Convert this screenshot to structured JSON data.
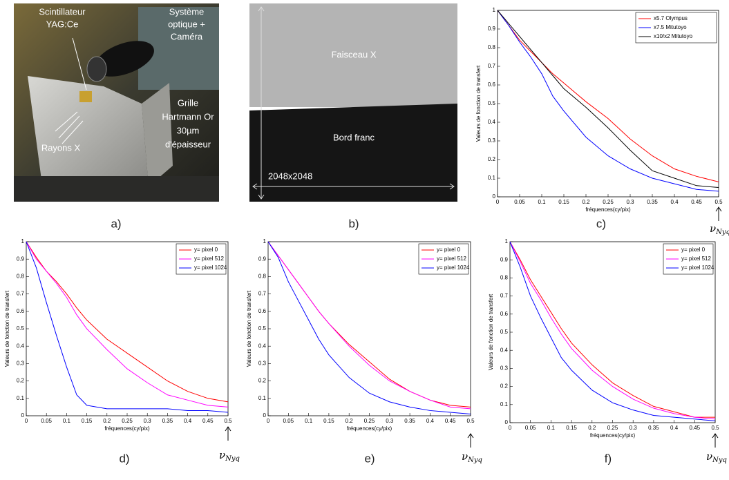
{
  "photos": [
    {
      "panel_label": "a)",
      "labels": [
        "Scintillateur",
        "YAG:Ce",
        "Système",
        "optique +",
        "Caméra",
        "Grille",
        "Hartmann Or",
        "30µm",
        "d'épaisseur",
        "Rayons X"
      ]
    },
    {
      "panel_label": "b)",
      "labels": [
        "Faisceau X",
        "Bord franc",
        "2048x2048"
      ]
    }
  ],
  "chart_data": [
    {
      "type": "line",
      "panel_label": "c)",
      "xlabel": "fréquences(cy/pix)",
      "ylabel": "Valeurs de fonction de transfert",
      "annotation": {
        "symbol": "ν",
        "subscript": "Nyq"
      },
      "x": [
        0,
        0.025,
        0.05,
        0.075,
        0.1,
        0.125,
        0.15,
        0.2,
        0.25,
        0.3,
        0.35,
        0.4,
        0.45,
        0.5
      ],
      "series": [
        {
          "name": "x5.7 Olympus",
          "color": "#ff0000",
          "values": [
            1,
            0.92,
            0.84,
            0.78,
            0.72,
            0.66,
            0.61,
            0.51,
            0.42,
            0.31,
            0.22,
            0.15,
            0.11,
            0.08
          ]
        },
        {
          "name": "x7.5 Mitutoyo",
          "color": "#0000ff",
          "values": [
            1,
            0.92,
            0.83,
            0.75,
            0.66,
            0.54,
            0.46,
            0.32,
            0.22,
            0.15,
            0.1,
            0.07,
            0.04,
            0.03
          ]
        },
        {
          "name": "x10/x2 Mitutoyo",
          "color": "#000000",
          "values": [
            1,
            0.93,
            0.86,
            0.79,
            0.72,
            0.65,
            0.58,
            0.48,
            0.37,
            0.25,
            0.14,
            0.1,
            0.06,
            0.05
          ]
        }
      ],
      "xlim": [
        0,
        0.5
      ],
      "ylim": [
        0,
        1
      ],
      "xticks": [
        0,
        0.05,
        0.1,
        0.15,
        0.2,
        0.25,
        0.3,
        0.35,
        0.4,
        0.45,
        0.5
      ],
      "yticks": [
        0,
        0.1,
        0.2,
        0.3,
        0.4,
        0.5,
        0.6,
        0.7,
        0.8,
        0.9,
        1
      ],
      "legend": "upper right"
    },
    {
      "type": "line",
      "panel_label": "d)",
      "xlabel": "fréquences(cy/pix)",
      "ylabel": "Valeurs de fonction de transfert",
      "annotation": {
        "symbol": "ν",
        "subscript": "Nyq"
      },
      "x": [
        0,
        0.025,
        0.05,
        0.075,
        0.1,
        0.125,
        0.15,
        0.2,
        0.25,
        0.3,
        0.35,
        0.4,
        0.45,
        0.5
      ],
      "series": [
        {
          "name": "y= pixel 0",
          "color": "#ff0000",
          "values": [
            1,
            0.91,
            0.83,
            0.77,
            0.7,
            0.62,
            0.55,
            0.44,
            0.36,
            0.28,
            0.2,
            0.14,
            0.1,
            0.08
          ]
        },
        {
          "name": "y= pixel 512",
          "color": "#ff00ff",
          "values": [
            1,
            0.9,
            0.83,
            0.76,
            0.68,
            0.58,
            0.5,
            0.38,
            0.27,
            0.19,
            0.12,
            0.09,
            0.06,
            0.05
          ]
        },
        {
          "name": "y= pixel 1024",
          "color": "#0000ff",
          "values": [
            1,
            0.85,
            0.65,
            0.46,
            0.28,
            0.12,
            0.06,
            0.04,
            0.04,
            0.04,
            0.04,
            0.03,
            0.03,
            0.02
          ]
        }
      ],
      "xlim": [
        0,
        0.5
      ],
      "ylim": [
        0,
        1
      ],
      "xticks": [
        0,
        0.05,
        0.1,
        0.15,
        0.2,
        0.25,
        0.3,
        0.35,
        0.4,
        0.45,
        0.5
      ],
      "yticks": [
        0,
        0.1,
        0.2,
        0.3,
        0.4,
        0.5,
        0.6,
        0.7,
        0.8,
        0.9,
        1
      ],
      "legend": "upper right"
    },
    {
      "type": "line",
      "panel_label": "e)",
      "xlabel": "fréquences(cy/pix)",
      "ylabel": "Valeurs de fonction de transfert",
      "annotation": {
        "symbol": "ν",
        "subscript": "Nyq"
      },
      "x": [
        0,
        0.025,
        0.05,
        0.075,
        0.1,
        0.125,
        0.15,
        0.2,
        0.25,
        0.3,
        0.35,
        0.4,
        0.45,
        0.5
      ],
      "series": [
        {
          "name": "y= pixel 0",
          "color": "#ff0000",
          "values": [
            1,
            0.92,
            0.84,
            0.76,
            0.68,
            0.6,
            0.53,
            0.41,
            0.31,
            0.21,
            0.14,
            0.09,
            0.06,
            0.05
          ]
        },
        {
          "name": "y= pixel 512",
          "color": "#ff00ff",
          "values": [
            1,
            0.92,
            0.84,
            0.76,
            0.68,
            0.6,
            0.53,
            0.4,
            0.29,
            0.2,
            0.14,
            0.09,
            0.05,
            0.04
          ]
        },
        {
          "name": "y= pixel 1024",
          "color": "#0000ff",
          "values": [
            1,
            0.91,
            0.77,
            0.66,
            0.55,
            0.44,
            0.35,
            0.22,
            0.13,
            0.08,
            0.05,
            0.03,
            0.02,
            0.01
          ]
        }
      ],
      "xlim": [
        0,
        0.5
      ],
      "ylim": [
        0,
        1
      ],
      "xticks": [
        0,
        0.05,
        0.1,
        0.15,
        0.2,
        0.25,
        0.3,
        0.35,
        0.4,
        0.45,
        0.5
      ],
      "yticks": [
        0,
        0.1,
        0.2,
        0.3,
        0.4,
        0.5,
        0.6,
        0.7,
        0.8,
        0.9,
        1
      ],
      "legend": "upper right"
    },
    {
      "type": "line",
      "panel_label": "f)",
      "xlabel": "fréquences(cy/pix)",
      "ylabel": "Valeurs de fonction de transfert",
      "annotation": {
        "symbol": "ν",
        "subscript": "Nyq"
      },
      "x": [
        0,
        0.025,
        0.05,
        0.075,
        0.1,
        0.125,
        0.15,
        0.2,
        0.25,
        0.3,
        0.35,
        0.4,
        0.45,
        0.5
      ],
      "series": [
        {
          "name": "y= pixel 0",
          "color": "#ff0000",
          "values": [
            1,
            0.9,
            0.79,
            0.7,
            0.61,
            0.52,
            0.44,
            0.32,
            0.22,
            0.15,
            0.09,
            0.06,
            0.03,
            0.03
          ]
        },
        {
          "name": "y= pixel 512",
          "color": "#ff00ff",
          "values": [
            1,
            0.89,
            0.77,
            0.68,
            0.58,
            0.49,
            0.41,
            0.29,
            0.2,
            0.13,
            0.08,
            0.05,
            0.03,
            0.02
          ]
        },
        {
          "name": "y= pixel 1024",
          "color": "#0000ff",
          "values": [
            1,
            0.86,
            0.7,
            0.58,
            0.47,
            0.36,
            0.29,
            0.18,
            0.11,
            0.07,
            0.04,
            0.03,
            0.02,
            0.01
          ]
        }
      ],
      "xlim": [
        0,
        0.5
      ],
      "ylim": [
        0,
        1
      ],
      "xticks": [
        0,
        0.05,
        0.1,
        0.15,
        0.2,
        0.25,
        0.3,
        0.35,
        0.4,
        0.45,
        0.5
      ],
      "yticks": [
        0,
        0.1,
        0.2,
        0.3,
        0.4,
        0.5,
        0.6,
        0.7,
        0.8,
        0.9,
        1
      ],
      "legend": "upper right"
    }
  ]
}
